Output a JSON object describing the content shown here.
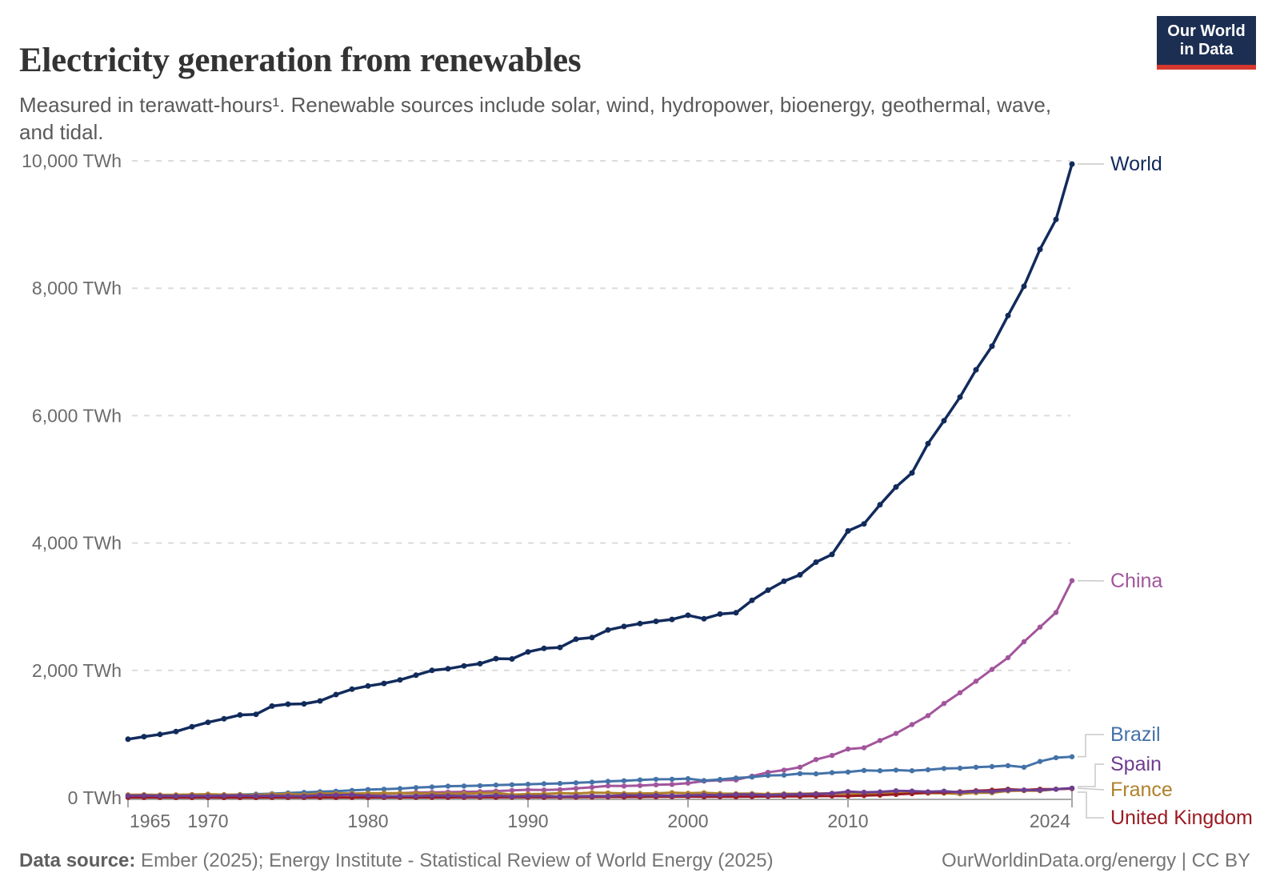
{
  "header": {
    "title": "Electricity generation from renewables",
    "subtitle": "Measured in terawatt-hours¹. Renewable sources include solar, wind, hydropower, bioenergy, geothermal, wave, and tidal.",
    "logo": {
      "line1": "Our World",
      "line2": "in Data"
    }
  },
  "footer": {
    "source_label": "Data source:",
    "source_text": " Ember (2025); Energy Institute - Statistical Review of World Energy (2025)",
    "link": "OurWorldinData.org/energy | CC BY"
  },
  "chart_data": {
    "type": "line",
    "title": "Electricity generation from renewables",
    "unit": "TWh",
    "xlim": [
      1965,
      2024
    ],
    "ylim": [
      0,
      10000
    ],
    "grid": "horizontal-dashed",
    "legend": "end-of-line labels, right side",
    "x_ticks": [
      1965,
      1970,
      1980,
      1990,
      2000,
      2010,
      2024
    ],
    "y_ticks": [
      {
        "value": 0,
        "label": "0 TWh"
      },
      {
        "value": 2000,
        "label": "2,000 TWh"
      },
      {
        "value": 4000,
        "label": "4,000 TWh"
      },
      {
        "value": 6000,
        "label": "6,000 TWh"
      },
      {
        "value": 8000,
        "label": "8,000 TWh"
      },
      {
        "value": 10000,
        "label": "10,000 TWh"
      }
    ],
    "x": [
      1965,
      1966,
      1967,
      1968,
      1969,
      1970,
      1971,
      1972,
      1973,
      1974,
      1975,
      1976,
      1977,
      1978,
      1979,
      1980,
      1981,
      1982,
      1983,
      1984,
      1985,
      1986,
      1987,
      1988,
      1989,
      1990,
      1991,
      1992,
      1993,
      1994,
      1995,
      1996,
      1997,
      1998,
      1999,
      2000,
      2001,
      2002,
      2003,
      2004,
      2005,
      2006,
      2007,
      2008,
      2009,
      2010,
      2011,
      2012,
      2013,
      2014,
      2015,
      2016,
      2017,
      2018,
      2019,
      2020,
      2021,
      2022,
      2023,
      2024
    ],
    "series": [
      {
        "name": "World",
        "color": "#122B5C",
        "values": [
          920,
          960,
          995,
          1040,
          1115,
          1185,
          1240,
          1300,
          1310,
          1440,
          1470,
          1475,
          1520,
          1620,
          1705,
          1755,
          1795,
          1850,
          1925,
          2000,
          2025,
          2070,
          2105,
          2185,
          2180,
          2290,
          2345,
          2360,
          2490,
          2515,
          2635,
          2690,
          2735,
          2770,
          2800,
          2865,
          2810,
          2885,
          2905,
          3100,
          3260,
          3400,
          3500,
          3700,
          3820,
          4190,
          4300,
          4600,
          4880,
          5100,
          5560,
          5920,
          6290,
          6720,
          7090,
          7570,
          8030,
          8610,
          9080,
          9950
        ]
      },
      {
        "name": "China",
        "color": "#A2559C",
        "values": [
          18,
          20,
          19,
          18,
          20,
          26,
          30,
          31,
          35,
          41,
          46,
          44,
          45,
          48,
          53,
          58,
          63,
          71,
          83,
          84,
          89,
          93,
          97,
          106,
          115,
          125,
          122,
          128,
          147,
          165,
          187,
          185,
          192,
          203,
          210,
          230,
          263,
          275,
          280,
          340,
          400,
          435,
          480,
          600,
          665,
          765,
          785,
          900,
          1010,
          1150,
          1290,
          1480,
          1650,
          1830,
          2015,
          2200,
          2450,
          2680,
          2910,
          3410
        ]
      },
      {
        "name": "Brazil",
        "color": "#4472A8",
        "values": [
          26,
          28,
          30,
          32,
          35,
          40,
          44,
          50,
          57,
          64,
          75,
          84,
          95,
          103,
          115,
          130,
          135,
          145,
          160,
          170,
          182,
          185,
          190,
          200,
          205,
          212,
          220,
          225,
          235,
          245,
          258,
          268,
          280,
          290,
          292,
          300,
          270,
          288,
          310,
          325,
          350,
          355,
          380,
          375,
          395,
          405,
          430,
          425,
          435,
          425,
          440,
          460,
          465,
          480,
          490,
          505,
          480,
          570,
          630,
          645
        ]
      },
      {
        "name": "Spain",
        "color": "#6D3E91",
        "values": [
          32,
          37,
          30,
          28,
          32,
          28,
          33,
          37,
          30,
          32,
          30,
          24,
          42,
          43,
          48,
          31,
          23,
          27,
          28,
          33,
          33,
          27,
          28,
          36,
          20,
          26,
          28,
          20,
          25,
          28,
          26,
          41,
          37,
          38,
          33,
          37,
          44,
          41,
          53,
          50,
          42,
          52,
          55,
          60,
          70,
          98,
          87,
          93,
          110,
          105,
          95,
          104,
          87,
          100,
          97,
          120,
          122,
          119,
          135,
          152
        ]
      },
      {
        "name": "France",
        "color": "#B0802B",
        "values": [
          47,
          49,
          45,
          47,
          52,
          57,
          49,
          49,
          44,
          57,
          60,
          49,
          68,
          69,
          68,
          70,
          72,
          71,
          70,
          67,
          64,
          64,
          71,
          77,
          49,
          58,
          62,
          72,
          68,
          80,
          77,
          68,
          68,
          70,
          81,
          72,
          79,
          66,
          64,
          65,
          57,
          63,
          63,
          68,
          68,
          68,
          51,
          64,
          76,
          68,
          72,
          73,
          62,
          80,
          79,
          108,
          112,
          110,
          136,
          150
        ]
      },
      {
        "name": "United Kingdom",
        "color": "#9A1B22",
        "values": [
          5,
          5,
          5,
          4,
          4,
          5,
          4,
          4,
          4,
          5,
          5,
          5,
          5,
          5,
          5,
          5,
          6,
          6,
          6,
          6,
          6,
          7,
          7,
          7,
          7,
          8,
          8,
          9,
          10,
          11,
          12,
          12,
          13,
          15,
          16,
          17,
          15,
          16,
          15,
          17,
          20,
          21,
          22,
          25,
          29,
          26,
          35,
          41,
          53,
          64,
          83,
          83,
          96,
          110,
          119,
          134,
          122,
          135,
          135,
          144
        ]
      }
    ]
  }
}
